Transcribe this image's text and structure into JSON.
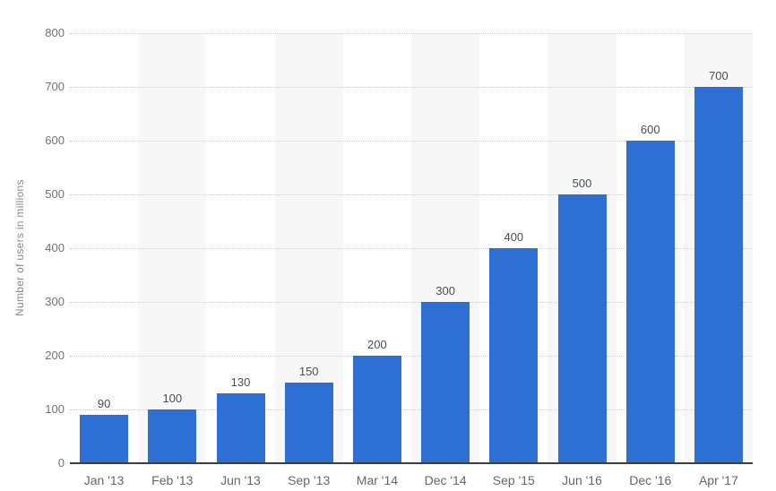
{
  "chart_data": {
    "type": "bar",
    "title": "",
    "xlabel": "",
    "ylabel": "Number of users in millions",
    "categories": [
      "Jan '13",
      "Feb '13",
      "Jun '13",
      "Sep '13",
      "Mar '14",
      "Dec '14",
      "Sep '15",
      "Jun '16",
      "Dec '16",
      "Apr '17"
    ],
    "values": [
      90,
      100,
      130,
      150,
      200,
      300,
      400,
      500,
      600,
      700
    ],
    "ylim": [
      0,
      800
    ],
    "yticks": [
      0,
      100,
      200,
      300,
      400,
      500,
      600,
      700,
      800
    ],
    "grid": "horizontal-dotted",
    "legend": "none",
    "bar_value_labels_shown": true,
    "column_stripes": "alternating, even columns shaded"
  },
  "colors": {
    "background": "#ffffff",
    "bar": "#2d6fd3",
    "stripe": "#f7f7f7",
    "gridline": "#cccccc",
    "axis_line": "#3d3d3d",
    "tick_label": "#737373",
    "value_label": "#4d4d4d",
    "category_label": "#666666",
    "axis_title": "#8c8c8c"
  }
}
